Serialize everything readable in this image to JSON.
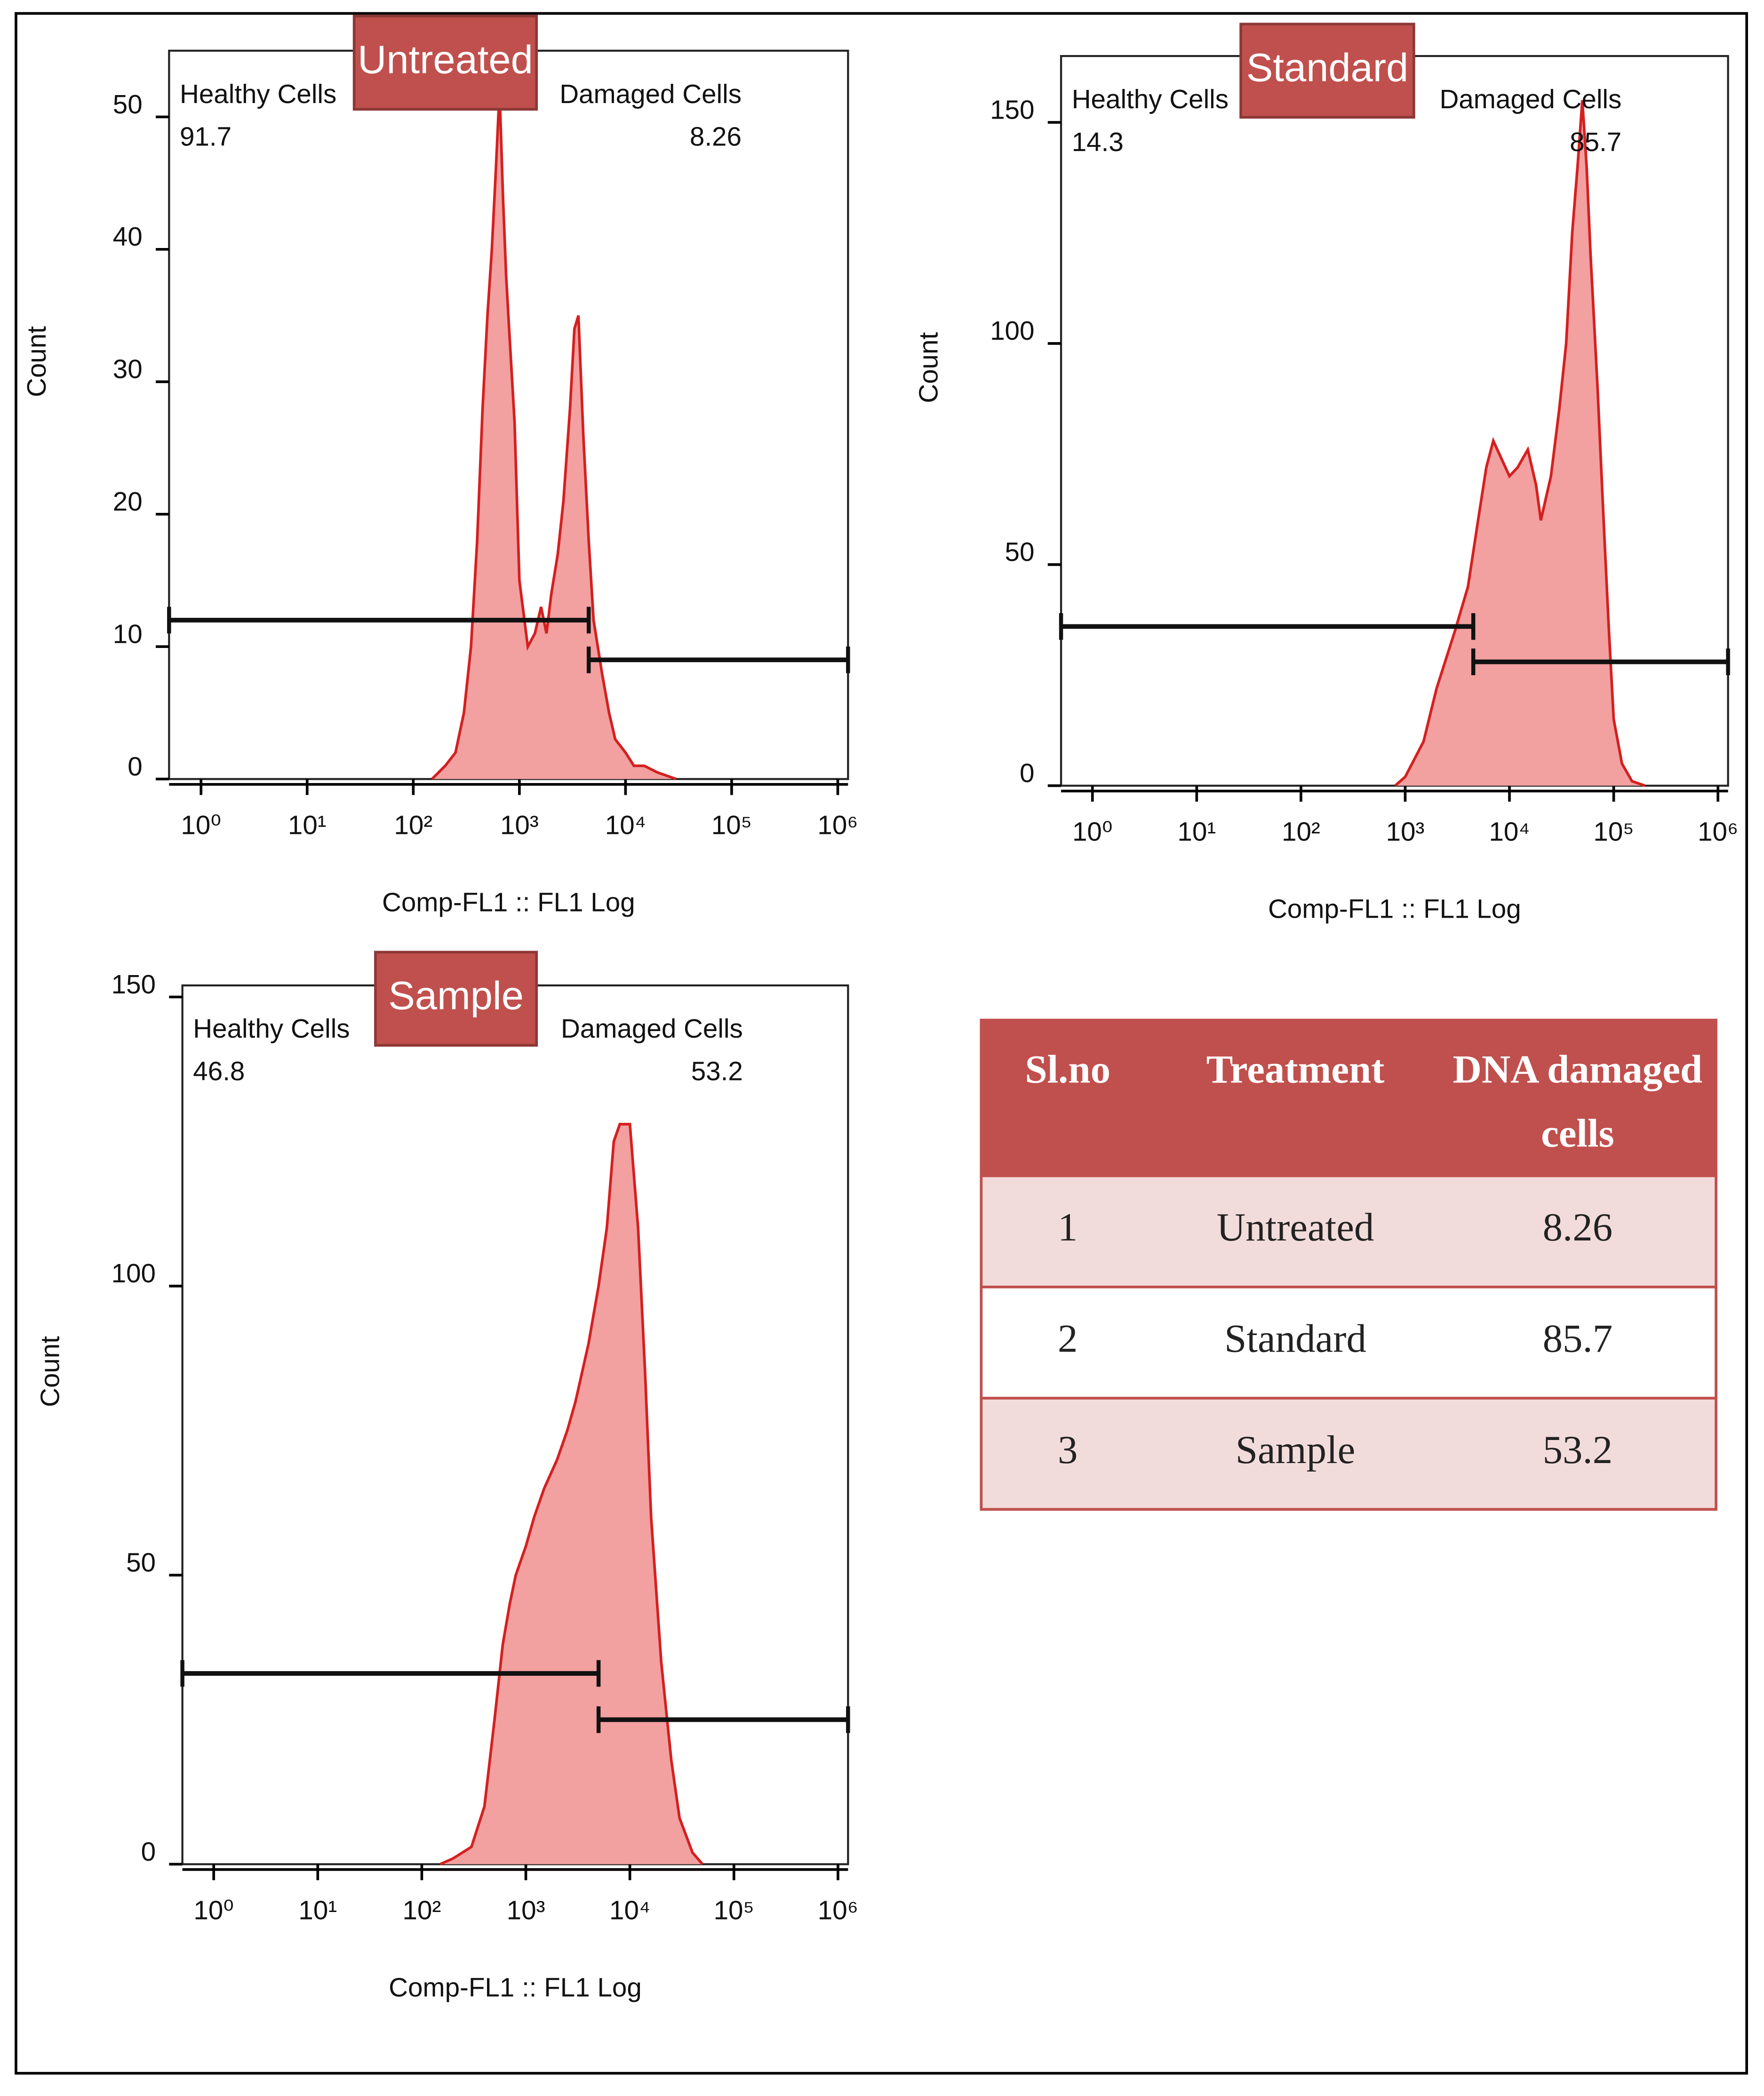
{
  "chart_data": [
    {
      "type": "area",
      "title": "Untreated",
      "x_label": "Comp-FL1 :: FL1 Log",
      "y_label": "Count",
      "xscale": "log",
      "xlim": [
        0.5,
        1250000
      ],
      "xticks": [
        {
          "value": 1,
          "label": "10⁰"
        },
        {
          "value": 10,
          "label": "10¹"
        },
        {
          "value": 100,
          "label": "10²"
        },
        {
          "value": 1000,
          "label": "10³"
        },
        {
          "value": 10000,
          "label": "10⁴"
        },
        {
          "value": 100000,
          "label": "10⁵"
        },
        {
          "value": 1000000,
          "label": "10⁶"
        }
      ],
      "ylim": [
        0,
        55
      ],
      "yticks": [
        0,
        10,
        20,
        30,
        40,
        50
      ],
      "color": "#d42020",
      "fill": "#f2a0a0",
      "x": [
        150,
        200,
        250,
        300,
        350,
        400,
        450,
        500,
        550,
        600,
        650,
        700,
        750,
        800,
        900,
        1000,
        1200,
        1400,
        1600,
        1800,
        2000,
        2300,
        2600,
        3000,
        3300,
        3600,
        4000,
        4500,
        5000,
        6000,
        7000,
        8000,
        10000,
        12000,
        15000,
        20000,
        30000
      ],
      "values": [
        0,
        1,
        2,
        5,
        10,
        18,
        28,
        35,
        40,
        46,
        52,
        44,
        38,
        34,
        27,
        15,
        10,
        11,
        13,
        11,
        14,
        17,
        21,
        28,
        34,
        35,
        26,
        18,
        12,
        8,
        5,
        3,
        2,
        1,
        1,
        0.5,
        0
      ],
      "gates": [
        {
          "name": "Healthy Cells",
          "percent": 91.7,
          "range": [
            0.5,
            4500
          ],
          "y": 12
        },
        {
          "name": "Damaged Cells",
          "percent": 8.26,
          "range": [
            4500,
            1250000
          ],
          "y": 9
        }
      ]
    },
    {
      "type": "area",
      "title": "Standard",
      "x_label": "Comp-FL1 :: FL1 Log",
      "y_label": "Count",
      "xscale": "log",
      "xlim": [
        0.5,
        1250000
      ],
      "xticks": [
        {
          "value": 1,
          "label": "10⁰"
        },
        {
          "value": 10,
          "label": "10¹"
        },
        {
          "value": 100,
          "label": "10²"
        },
        {
          "value": 1000,
          "label": "10³"
        },
        {
          "value": 10000,
          "label": "10⁴"
        },
        {
          "value": 100000,
          "label": "10⁵"
        },
        {
          "value": 1000000,
          "label": "10⁶"
        }
      ],
      "ylim": [
        0,
        165
      ],
      "yticks": [
        0,
        50,
        100,
        150
      ],
      "color": "#d42020",
      "fill": "#f2a0a0",
      "x": [
        800,
        1000,
        1500,
        2000,
        3000,
        4000,
        5000,
        6000,
        7000,
        8000,
        10000,
        12000,
        15000,
        18000,
        20000,
        25000,
        30000,
        35000,
        40000,
        45000,
        50000,
        55000,
        60000,
        70000,
        80000,
        90000,
        100000,
        120000,
        150000,
        200000
      ],
      "values": [
        0,
        2,
        10,
        22,
        35,
        45,
        60,
        72,
        78,
        75,
        70,
        72,
        76,
        68,
        60,
        70,
        85,
        100,
        125,
        140,
        155,
        140,
        120,
        90,
        60,
        35,
        15,
        5,
        1,
        0
      ],
      "gates": [
        {
          "name": "Healthy Cells",
          "percent": 14.3,
          "range": [
            0.5,
            4500
          ],
          "y": 36
        },
        {
          "name": "Damaged Cells",
          "percent": 85.7,
          "range": [
            4500,
            1250000
          ],
          "y": 28
        }
      ]
    },
    {
      "type": "area",
      "title": "Sample",
      "x_label": "Comp-FL1 :: FL1 Log",
      "y_label": "Count",
      "xscale": "log",
      "xlim": [
        0.5,
        1250000
      ],
      "xticks": [
        {
          "value": 1,
          "label": "10⁰"
        },
        {
          "value": 10,
          "label": "10¹"
        },
        {
          "value": 100,
          "label": "10²"
        },
        {
          "value": 1000,
          "label": "10³"
        },
        {
          "value": 10000,
          "label": "10⁴"
        },
        {
          "value": 100000,
          "label": "10⁵"
        },
        {
          "value": 1000000,
          "label": "10⁶"
        }
      ],
      "ylim": [
        0,
        152
      ],
      "yticks": [
        0,
        50,
        100,
        150
      ],
      "color": "#d42020",
      "fill": "#f2a0a0",
      "x": [
        150,
        200,
        300,
        400,
        500,
        600,
        700,
        800,
        1000,
        1200,
        1500,
        2000,
        2500,
        3000,
        4000,
        5000,
        6000,
        7000,
        8000,
        10000,
        12000,
        14000,
        16000,
        20000,
        25000,
        30000,
        40000,
        50000
      ],
      "values": [
        0,
        1,
        3,
        10,
        25,
        38,
        45,
        50,
        55,
        60,
        65,
        70,
        75,
        80,
        90,
        100,
        110,
        125,
        128,
        128,
        110,
        85,
        60,
        35,
        18,
        8,
        2,
        0
      ],
      "gates": [
        {
          "name": "Healthy Cells",
          "percent": 46.8,
          "range": [
            0.5,
            5000
          ],
          "y": 33
        },
        {
          "name": "Damaged Cells",
          "percent": 53.2,
          "range": [
            5000,
            1250000
          ],
          "y": 25
        }
      ]
    }
  ],
  "table": {
    "columns": [
      "Sl.no",
      "Treatment",
      "DNA damaged cells"
    ],
    "rows": [
      [
        1,
        "Untreated",
        8.26
      ],
      [
        2,
        "Standard",
        85.7
      ],
      [
        3,
        "Sample",
        53.2
      ]
    ]
  }
}
